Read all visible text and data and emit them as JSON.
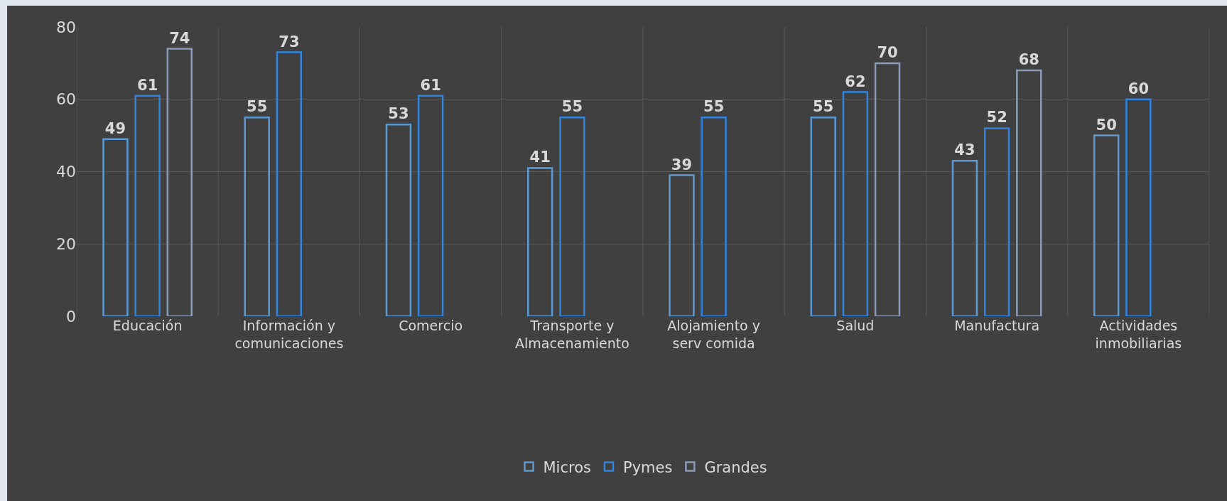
{
  "chart_data": {
    "type": "bar",
    "categories": [
      "Educación",
      "Información y comunicaciones",
      "Comercio",
      "Transporte y Almacenamiento",
      "Alojamiento y serv comida",
      "Salud",
      "Manufactura",
      "Actividades inmobiliarias"
    ],
    "series": [
      {
        "name": "Micros",
        "color": "#5b9bd5",
        "values": [
          49,
          55,
          53,
          41,
          39,
          55,
          43,
          50
        ]
      },
      {
        "name": "Pymes",
        "color": "#2e84e0",
        "values": [
          61,
          73,
          61,
          55,
          55,
          62,
          52,
          60
        ]
      },
      {
        "name": "Grandes",
        "color": "#8a9bb8",
        "values": [
          74,
          null,
          null,
          null,
          null,
          70,
          68,
          null
        ]
      }
    ],
    "ylim": [
      0,
      80
    ],
    "yticks": [
      0,
      20,
      40,
      60,
      80
    ],
    "grid": true,
    "legend": "bottom",
    "data_labels": true
  }
}
